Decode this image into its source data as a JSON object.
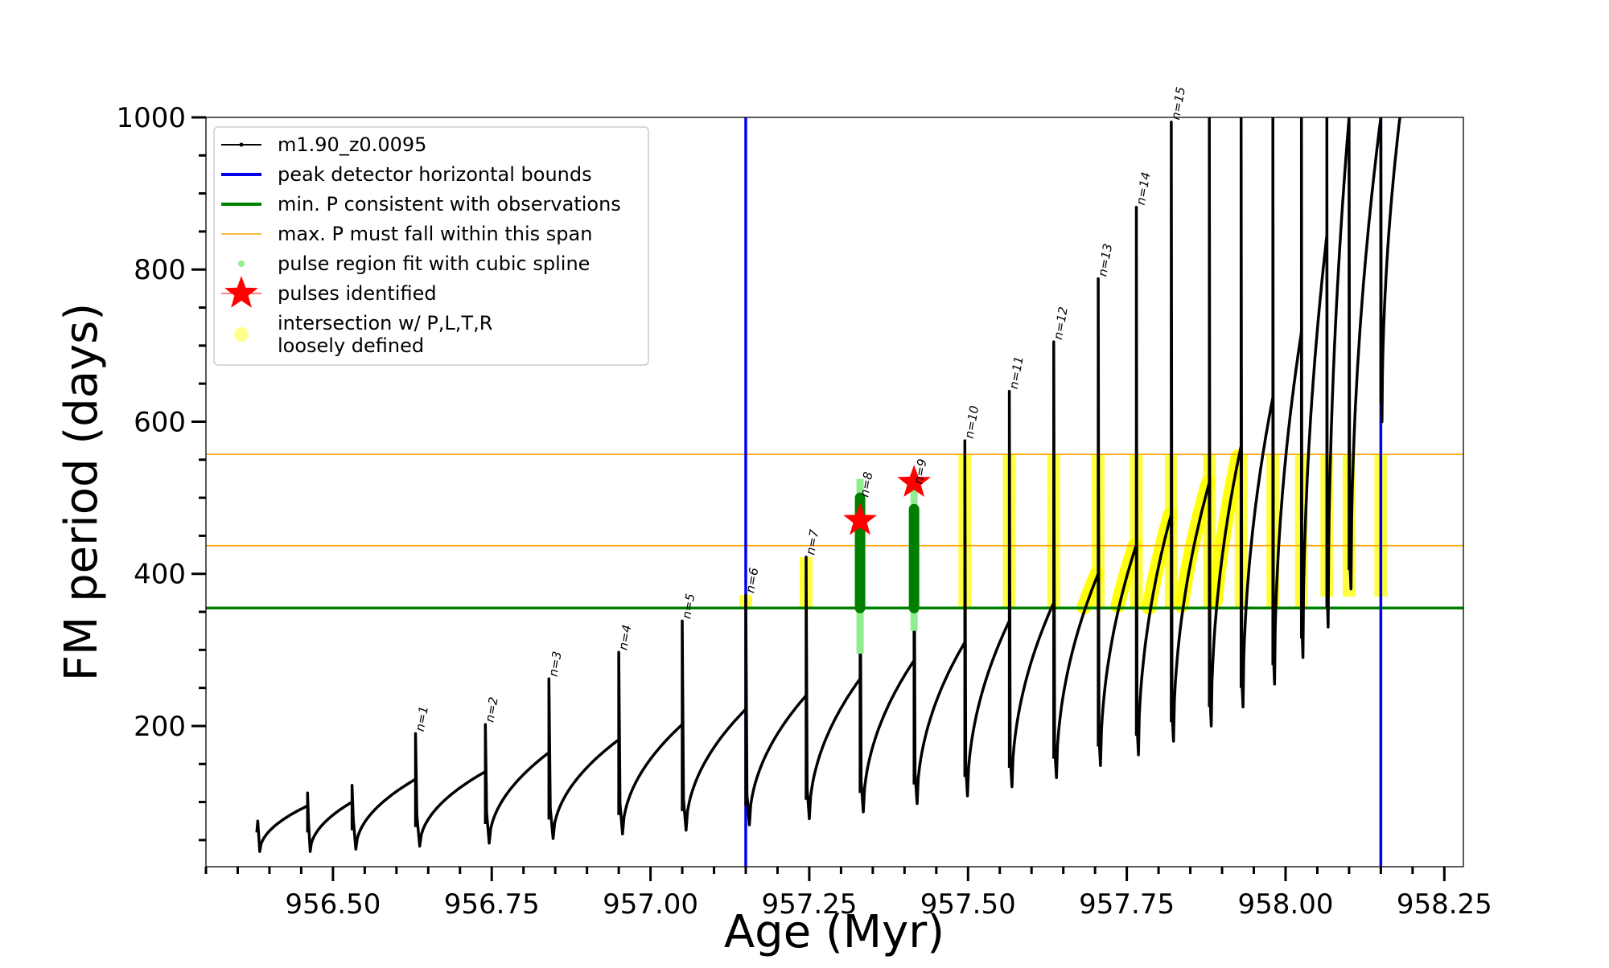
{
  "chart_data": {
    "type": "line",
    "title": "",
    "xlabel": "Age (Myr)",
    "ylabel": "FM period (days)",
    "xlim": [
      956.3,
      958.28
    ],
    "ylim": [
      15,
      1000
    ],
    "xticks_major": [
      956.5,
      956.75,
      957.0,
      957.25,
      957.5,
      957.75,
      958.0,
      958.25
    ],
    "xtick_labels": [
      "956.50",
      "956.75",
      "957.00",
      "957.25",
      "957.50",
      "957.75",
      "958.00",
      "958.25"
    ],
    "yticks_major": [
      200,
      400,
      600,
      800,
      1000
    ],
    "ytick_labels": [
      "200",
      "400",
      "600",
      "800",
      "1000"
    ],
    "grid": false,
    "legend_position": "upper-left",
    "colors": {
      "track": "#000000",
      "peak_bounds": "#0000ee",
      "min_p": "#008000",
      "max_p_span": "#ffa500",
      "spline_fit": "#90ee90",
      "pulses": "#ff0000",
      "intersection": "#ffff00"
    },
    "legend": [
      {
        "label": "m1.90_z0.0095",
        "kind": "line-dot",
        "color": "#000000"
      },
      {
        "label": "peak detector horizontal bounds",
        "kind": "line",
        "color": "#0000ee"
      },
      {
        "label": "min. P consistent with observations",
        "kind": "line",
        "color": "#008000"
      },
      {
        "label": "max. P must fall within this span",
        "kind": "thin-line",
        "color": "#ffa500"
      },
      {
        "label": "pulse region fit with cubic spline",
        "kind": "dot",
        "color": "#90ee90"
      },
      {
        "label": "pulses identified",
        "kind": "star",
        "color": "#ff0000"
      },
      {
        "label": "intersection w/ P,L,T,R",
        "label2": "loosely defined",
        "kind": "big-dot",
        "color": "#ffff00"
      }
    ],
    "vlines": [
      957.15,
      958.15
    ],
    "hline_min_p": 355,
    "hlines_max_p": [
      437,
      557
    ],
    "pulses_identified": [
      {
        "x": 957.33,
        "y": 470
      },
      {
        "x": 957.415,
        "y": 520
      }
    ],
    "cycles": [
      {
        "x0": 956.38,
        "x1": 956.46,
        "p0": 35,
        "p1": 95,
        "spike": 60
      },
      {
        "x0": 956.46,
        "x1": 956.53,
        "p0": 35,
        "p1": 100,
        "spike": 112
      },
      {
        "x0": 956.53,
        "x1": 956.63,
        "p0": 38,
        "p1": 130,
        "spike": 122
      },
      {
        "x0": 956.63,
        "x1": 956.74,
        "p0": 42,
        "p1": 140,
        "spike": 190
      },
      {
        "x0": 956.74,
        "x1": 956.84,
        "p0": 46,
        "p1": 165,
        "spike": 202
      },
      {
        "x0": 956.84,
        "x1": 956.95,
        "p0": 52,
        "p1": 182,
        "spike": 262
      },
      {
        "x0": 956.95,
        "x1": 957.05,
        "p0": 58,
        "p1": 202,
        "spike": 297
      },
      {
        "x0": 957.05,
        "x1": 957.15,
        "p0": 63,
        "p1": 222,
        "spike": 338
      },
      {
        "x0": 957.15,
        "x1": 957.245,
        "p0": 70,
        "p1": 240,
        "spike": 372
      },
      {
        "x0": 957.245,
        "x1": 957.33,
        "p0": 78,
        "p1": 262,
        "spike": 422
      },
      {
        "x0": 957.33,
        "x1": 957.415,
        "p0": 87,
        "p1": 286,
        "spike": 498
      },
      {
        "x0": 957.415,
        "x1": 957.495,
        "p0": 98,
        "p1": 310,
        "spike": 515
      },
      {
        "x0": 957.495,
        "x1": 957.565,
        "p0": 108,
        "p1": 338,
        "spike": 575
      },
      {
        "x0": 957.565,
        "x1": 957.635,
        "p0": 120,
        "p1": 362,
        "spike": 640
      },
      {
        "x0": 957.635,
        "x1": 957.705,
        "p0": 132,
        "p1": 400,
        "spike": 705
      },
      {
        "x0": 957.705,
        "x1": 957.765,
        "p0": 148,
        "p1": 438,
        "spike": 788
      },
      {
        "x0": 957.765,
        "x1": 957.82,
        "p0": 162,
        "p1": 478,
        "spike": 882
      },
      {
        "x0": 957.82,
        "x1": 957.88,
        "p0": 180,
        "p1": 520,
        "spike": 994
      },
      {
        "x0": 957.88,
        "x1": 957.93,
        "p0": 200,
        "p1": 568,
        "spike": 1000
      },
      {
        "x0": 957.93,
        "x1": 957.98,
        "p0": 225,
        "p1": 632,
        "spike": 1000
      },
      {
        "x0": 957.98,
        "x1": 958.025,
        "p0": 255,
        "p1": 718,
        "spike": 1000
      },
      {
        "x0": 958.025,
        "x1": 958.065,
        "p0": 290,
        "p1": 845,
        "spike": 1000
      },
      {
        "x0": 958.065,
        "x1": 958.1,
        "p0": 330,
        "p1": 1000,
        "spike": 1000
      },
      {
        "x0": 958.1,
        "x1": 958.15,
        "p0": 380,
        "p1": 1000,
        "spike": 1000
      },
      {
        "x0": 958.15,
        "x1": 958.18,
        "p0": 600,
        "p1": 1000,
        "spike": 1000
      }
    ],
    "pulse_labels": [
      {
        "text": "n=1",
        "x": 956.63,
        "y": 190
      },
      {
        "text": "n=2",
        "x": 956.74,
        "y": 202
      },
      {
        "text": "n=3",
        "x": 956.84,
        "y": 262
      },
      {
        "text": "n=4",
        "x": 956.95,
        "y": 297
      },
      {
        "text": "n=5",
        "x": 957.05,
        "y": 338
      },
      {
        "text": "n=6",
        "x": 957.15,
        "y": 372
      },
      {
        "text": "n=7",
        "x": 957.245,
        "y": 422
      },
      {
        "text": "n=8",
        "x": 957.33,
        "y": 498
      },
      {
        "text": "n=9",
        "x": 957.415,
        "y": 515
      },
      {
        "text": "n=10",
        "x": 957.495,
        "y": 575
      },
      {
        "text": "n=11",
        "x": 957.565,
        "y": 640
      },
      {
        "text": "n=12",
        "x": 957.635,
        "y": 705
      },
      {
        "text": "n=13",
        "x": 957.705,
        "y": 788
      },
      {
        "text": "n=14",
        "x": 957.765,
        "y": 882
      },
      {
        "text": "n=15",
        "x": 957.82,
        "y": 994
      }
    ],
    "green_pulse_regions": [
      {
        "x": 957.33,
        "ylo": 295,
        "yhi": 525
      },
      {
        "x": 957.415,
        "ylo": 325,
        "yhi": 510
      }
    ]
  }
}
